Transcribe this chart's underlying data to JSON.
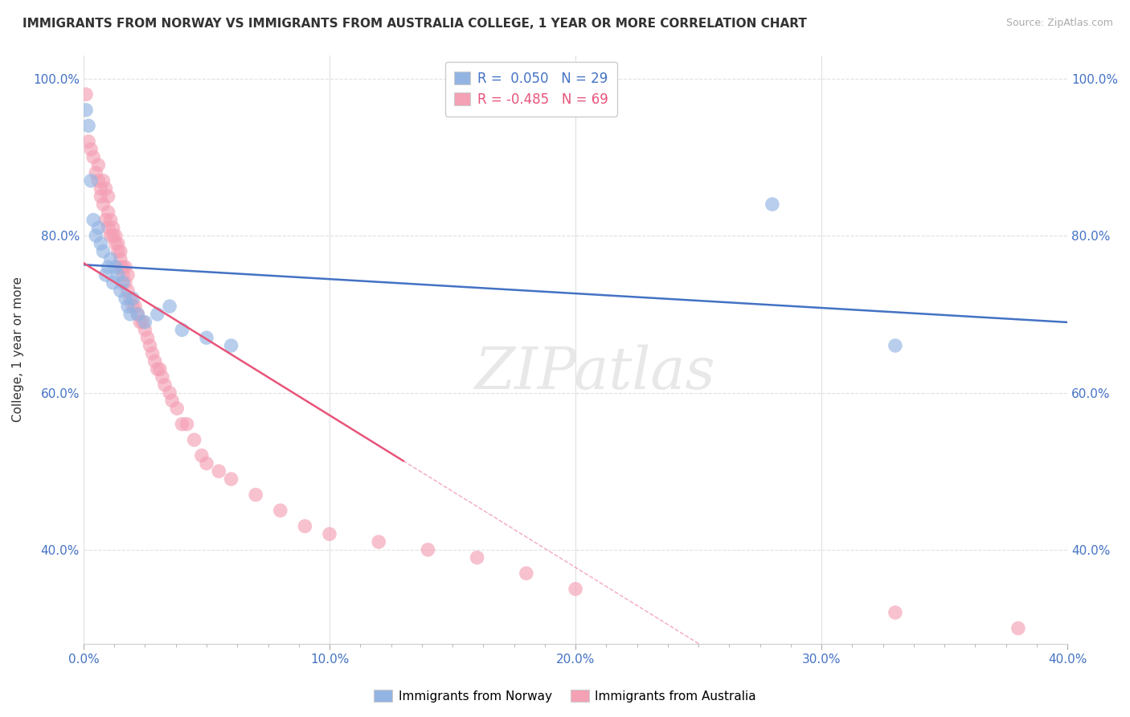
{
  "title": "IMMIGRANTS FROM NORWAY VS IMMIGRANTS FROM AUSTRALIA COLLEGE, 1 YEAR OR MORE CORRELATION CHART",
  "source": "Source: ZipAtlas.com",
  "ylabel": "College, 1 year or more",
  "xlim": [
    0.0,
    0.4
  ],
  "ylim": [
    0.28,
    1.03
  ],
  "xtick_labels": [
    "0.0%",
    "",
    "",
    "",
    "",
    "",
    "",
    "",
    "10.0%",
    "",
    "",
    "",
    "",
    "",
    "",
    "",
    "20.0%",
    "",
    "",
    "",
    "",
    "",
    "",
    "",
    "30.0%",
    "",
    "",
    "",
    "",
    "",
    "",
    "",
    "40.0%"
  ],
  "xtick_vals": [
    0.0,
    0.0125,
    0.025,
    0.0375,
    0.05,
    0.0625,
    0.075,
    0.0875,
    0.1,
    0.1125,
    0.125,
    0.1375,
    0.15,
    0.1625,
    0.175,
    0.1875,
    0.2,
    0.2125,
    0.225,
    0.2375,
    0.25,
    0.2625,
    0.275,
    0.2875,
    0.3,
    0.3125,
    0.325,
    0.3375,
    0.35,
    0.3625,
    0.375,
    0.3875,
    0.4
  ],
  "xtick_major_labels": [
    "0.0%",
    "10.0%",
    "20.0%",
    "30.0%",
    "40.0%"
  ],
  "xtick_major_vals": [
    0.0,
    0.1,
    0.2,
    0.3,
    0.4
  ],
  "ytick_labels": [
    "40.0%",
    "60.0%",
    "80.0%",
    "100.0%"
  ],
  "ytick_vals": [
    0.4,
    0.6,
    0.8,
    1.0
  ],
  "norway_color": "#92b4e3",
  "australia_color": "#f4a0b5",
  "norway_line_color": "#4472c4",
  "australia_line_color": "#e8547a",
  "norway_R": 0.05,
  "norway_N": 29,
  "australia_R": -0.485,
  "australia_N": 69,
  "norway_scatter_x": [
    0.001,
    0.002,
    0.003,
    0.004,
    0.005,
    0.006,
    0.007,
    0.008,
    0.009,
    0.01,
    0.011,
    0.012,
    0.013,
    0.014,
    0.015,
    0.016,
    0.017,
    0.018,
    0.019,
    0.02,
    0.022,
    0.025,
    0.03,
    0.035,
    0.04,
    0.05,
    0.06,
    0.28,
    0.33
  ],
  "norway_scatter_y": [
    0.96,
    0.94,
    0.87,
    0.82,
    0.8,
    0.81,
    0.79,
    0.78,
    0.75,
    0.76,
    0.77,
    0.74,
    0.76,
    0.75,
    0.73,
    0.74,
    0.72,
    0.71,
    0.7,
    0.72,
    0.7,
    0.69,
    0.7,
    0.71,
    0.68,
    0.67,
    0.66,
    0.84,
    0.66
  ],
  "australia_scatter_x": [
    0.001,
    0.002,
    0.003,
    0.004,
    0.005,
    0.006,
    0.006,
    0.007,
    0.007,
    0.008,
    0.008,
    0.009,
    0.009,
    0.01,
    0.01,
    0.01,
    0.011,
    0.011,
    0.012,
    0.012,
    0.013,
    0.013,
    0.014,
    0.014,
    0.015,
    0.015,
    0.015,
    0.016,
    0.016,
    0.017,
    0.017,
    0.018,
    0.018,
    0.019,
    0.02,
    0.021,
    0.022,
    0.023,
    0.024,
    0.025,
    0.026,
    0.027,
    0.028,
    0.029,
    0.03,
    0.031,
    0.032,
    0.033,
    0.035,
    0.036,
    0.038,
    0.04,
    0.042,
    0.045,
    0.048,
    0.05,
    0.055,
    0.06,
    0.07,
    0.08,
    0.09,
    0.1,
    0.12,
    0.14,
    0.16,
    0.18,
    0.2,
    0.33,
    0.38
  ],
  "australia_scatter_y": [
    0.98,
    0.92,
    0.91,
    0.9,
    0.88,
    0.87,
    0.89,
    0.86,
    0.85,
    0.84,
    0.87,
    0.82,
    0.86,
    0.81,
    0.85,
    0.83,
    0.82,
    0.8,
    0.81,
    0.8,
    0.79,
    0.8,
    0.78,
    0.79,
    0.77,
    0.76,
    0.78,
    0.76,
    0.75,
    0.76,
    0.74,
    0.75,
    0.73,
    0.72,
    0.71,
    0.71,
    0.7,
    0.69,
    0.69,
    0.68,
    0.67,
    0.66,
    0.65,
    0.64,
    0.63,
    0.63,
    0.62,
    0.61,
    0.6,
    0.59,
    0.58,
    0.56,
    0.56,
    0.54,
    0.52,
    0.51,
    0.5,
    0.49,
    0.47,
    0.45,
    0.43,
    0.42,
    0.41,
    0.4,
    0.39,
    0.37,
    0.35,
    0.32,
    0.3
  ],
  "watermark_text": "ZIPatlas",
  "background_color": "#ffffff",
  "grid_color": "#e0e0e0",
  "title_fontsize": 11,
  "axis_label_fontsize": 11,
  "tick_fontsize": 11,
  "source_fontsize": 9
}
